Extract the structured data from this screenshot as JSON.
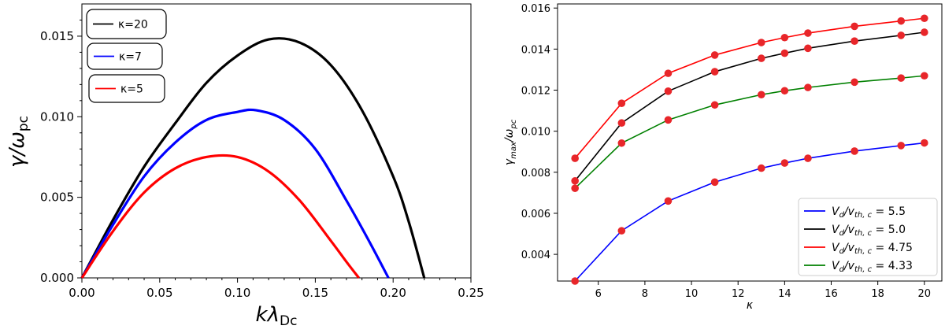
{
  "chart_data": [
    {
      "type": "line",
      "xlabel": "kλDc",
      "ylabel": "γ/ωpc",
      "xlim": [
        0,
        0.25
      ],
      "ylim": [
        0,
        0.017
      ],
      "xticks": [
        "0.00",
        "0.05",
        "0.10",
        "0.15",
        "0.20",
        "0.25"
      ],
      "yticks": [
        "0.000",
        "0.005",
        "0.010",
        "0.015"
      ],
      "legend_position": "top-left",
      "series": [
        {
          "name": "κ=20",
          "color": "#000000",
          "x": [
            0,
            0.02,
            0.04,
            0.06,
            0.08,
            0.1,
            0.12,
            0.14,
            0.16,
            0.18,
            0.2,
            0.21,
            0.22
          ],
          "y": [
            0,
            0.0036,
            0.0069,
            0.0096,
            0.0121,
            0.0138,
            0.0148,
            0.0146,
            0.0132,
            0.0104,
            0.0063,
            0.0035,
            0
          ]
        },
        {
          "name": "κ=7",
          "color": "#0000ff",
          "x": [
            0,
            0.02,
            0.04,
            0.06,
            0.08,
            0.1,
            0.112,
            0.13,
            0.15,
            0.17,
            0.185,
            0.197
          ],
          "y": [
            0,
            0.0033,
            0.0063,
            0.0084,
            0.0098,
            0.0103,
            0.0104,
            0.0098,
            0.008,
            0.0048,
            0.0022,
            0
          ]
        },
        {
          "name": "κ=5",
          "color": "#ff0000",
          "x": [
            0,
            0.02,
            0.04,
            0.06,
            0.08,
            0.1,
            0.12,
            0.14,
            0.16,
            0.17,
            0.178
          ],
          "y": [
            0,
            0.0029,
            0.0053,
            0.0068,
            0.0075,
            0.0075,
            0.0066,
            0.0048,
            0.0023,
            0.001,
            0
          ]
        }
      ]
    },
    {
      "type": "line",
      "xlabel": "κ",
      "ylabel": "γmax/ωpc",
      "xlim": [
        4.25,
        20.75
      ],
      "ylim": [
        0.0027,
        0.0162
      ],
      "xticks": [
        "6",
        "8",
        "10",
        "12",
        "14",
        "16",
        "18",
        "20"
      ],
      "yticks": [
        "0.004",
        "0.006",
        "0.008",
        "0.010",
        "0.012",
        "0.014",
        "0.016"
      ],
      "legend_position": "bottom-right",
      "marker_color": "#e8262a",
      "x": [
        5,
        7,
        9,
        11,
        13,
        14,
        15,
        17,
        19,
        20
      ],
      "series": [
        {
          "name": "5.5",
          "label_prefix": "Vd/vth,c = ",
          "color": "#0000ff",
          "values": [
            0.0027,
            0.00515,
            0.0066,
            0.00752,
            0.0082,
            0.00845,
            0.00868,
            0.00903,
            0.0093,
            0.00943
          ]
        },
        {
          "name": "5.0",
          "label_prefix": "Vd/vth,c = ",
          "color": "#000000",
          "values": [
            0.00758,
            0.0104,
            0.01195,
            0.0129,
            0.01355,
            0.0138,
            0.01404,
            0.01439,
            0.01467,
            0.01482
          ]
        },
        {
          "name": "4.75",
          "label_prefix": "Vd/vth,c = ",
          "color": "#ff0000",
          "values": [
            0.00868,
            0.01136,
            0.01282,
            0.01371,
            0.01432,
            0.01456,
            0.01478,
            0.01511,
            0.01537,
            0.0155
          ]
        },
        {
          "name": "4.33",
          "label_prefix": "Vd/vth,c = ",
          "color": "#008000",
          "values": [
            0.00722,
            0.00942,
            0.01055,
            0.01128,
            0.01178,
            0.01197,
            0.01213,
            0.01239,
            0.01259,
            0.0127
          ]
        }
      ]
    }
  ]
}
